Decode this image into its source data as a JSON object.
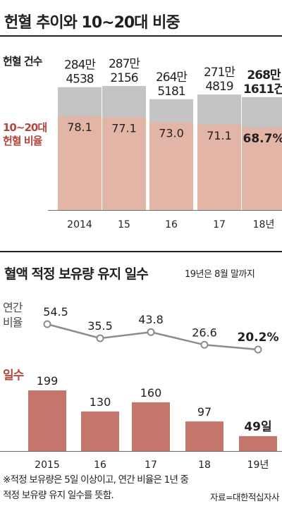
{
  "section1": {
    "title": "헌혈 추이와 10~20대 비중",
    "legend_count": "헌혈 건수",
    "legend_ratio_line1": "10~20대",
    "legend_ratio_line2": "헌혈 비율"
  },
  "section2": {
    "title": "혈액 적정 보유량 유지 일수",
    "note": "19년은 8월 말까지",
    "legend_ratio_line1": "연간",
    "legend_ratio_line2": "비율",
    "legend_days": "일수"
  },
  "footnote": "※적정 보유량은 5일 이상이고, 연간 비율은 1년 중\n적정 보유량 유지 일수를 뜻함.",
  "source": "자료=대한적십자사",
  "colors": {
    "gray_bar": "#c4c4c4",
    "pink_bar": "#e3b5a7",
    "red_bar": "#c4766b",
    "red_text": "#b4463c",
    "line": "#8c8c8c",
    "text": "#231f20"
  },
  "chart_data": [
    {
      "type": "bar",
      "title": "헌혈 추이와 10~20대 비중",
      "categories": [
        "2014",
        "15",
        "16",
        "17",
        "18년"
      ],
      "series": [
        {
          "name": "헌혈 건수",
          "values": [
            2844538,
            2872156,
            2645181,
            2714819,
            2681611
          ],
          "labels": [
            [
              "284만",
              "4538"
            ],
            [
              "287만",
              "2156"
            ],
            [
              "264만",
              "5181"
            ],
            [
              "271만",
              "4819"
            ],
            [
              "268만",
              "1611건"
            ]
          ]
        },
        {
          "name": "10~20대 헌혈 비율",
          "values": [
            78.1,
            77.1,
            73.0,
            71.1,
            68.7
          ],
          "labels": [
            "78.1",
            "77.1",
            "73.0",
            "71.1",
            "68.7%"
          ]
        }
      ],
      "highlight_index": 4
    },
    {
      "type": "line",
      "title": "혈액 적정 보유량 유지 일수",
      "categories": [
        "2015",
        "16",
        "17",
        "18",
        "19년"
      ],
      "series": [
        {
          "name": "연간 비율",
          "values": [
            54.5,
            35.5,
            43.8,
            26.6,
            20.2
          ],
          "labels": [
            "54.5",
            "35.5",
            "43.8",
            "26.6",
            "20.2%"
          ]
        }
      ]
    },
    {
      "type": "bar",
      "categories": [
        "2015",
        "16",
        "17",
        "18",
        "19년"
      ],
      "series": [
        {
          "name": "일수",
          "values": [
            199,
            130,
            160,
            97,
            49
          ],
          "labels": [
            "199",
            "130",
            "160",
            "97",
            "49일"
          ]
        }
      ]
    }
  ]
}
